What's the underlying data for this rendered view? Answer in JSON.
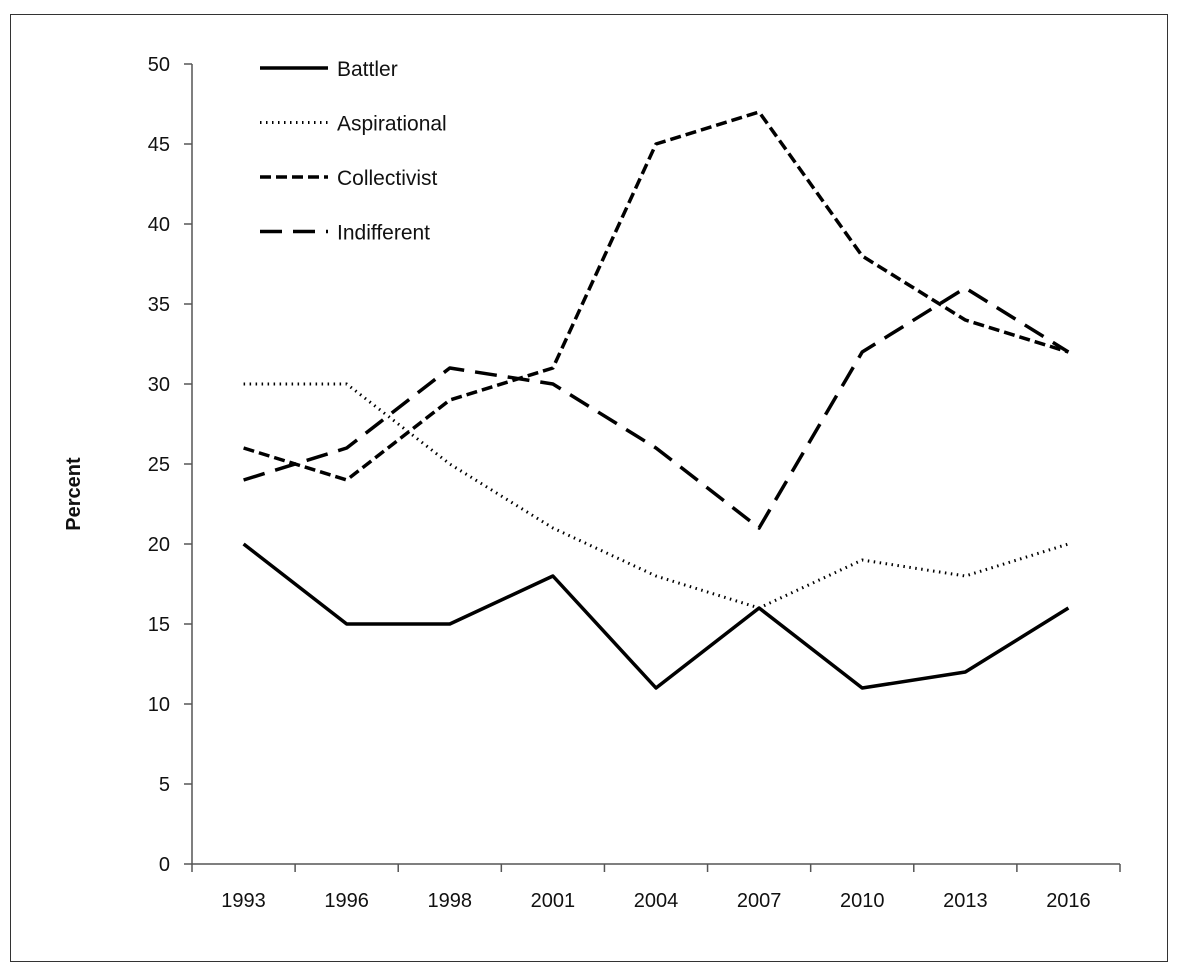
{
  "chart_data": {
    "type": "line",
    "title": "",
    "xlabel": "",
    "ylabel": "Percent",
    "categories": [
      "1993",
      "1996",
      "1998",
      "2001",
      "2004",
      "2007",
      "2010",
      "2013",
      "2016"
    ],
    "ylim": [
      0,
      50
    ],
    "yticks": [
      0,
      5,
      10,
      15,
      20,
      25,
      30,
      35,
      40,
      45,
      50
    ],
    "grid": false,
    "legend_position": "top-left",
    "series": [
      {
        "name": "Battler",
        "style": "solid",
        "values": [
          20,
          15,
          15,
          18,
          11,
          16,
          11,
          12,
          16
        ]
      },
      {
        "name": "Aspirational",
        "style": "dotted",
        "values": [
          30,
          30,
          25,
          21,
          18,
          16,
          19,
          18,
          20
        ]
      },
      {
        "name": "Collectivist",
        "style": "short-dash",
        "values": [
          26,
          24,
          29,
          31,
          45,
          47,
          38,
          34,
          32
        ]
      },
      {
        "name": "Indifferent",
        "style": "long-dash",
        "values": [
          24,
          26,
          31,
          30,
          26,
          21,
          32,
          36,
          32
        ]
      }
    ],
    "colors": {
      "line": "#000000",
      "axis": "#555555",
      "border": "#333333"
    }
  }
}
